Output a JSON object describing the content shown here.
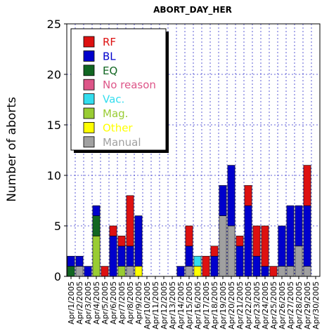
{
  "chart_data": {
    "type": "bar",
    "stacked": true,
    "title": "ABORT_DAY_HER",
    "xlabel": "",
    "ylabel": "Number of aborts",
    "ylim": [
      0,
      25
    ],
    "yticks": [
      0,
      5,
      10,
      15,
      20,
      25
    ],
    "grid": true,
    "legend_position": "top-left",
    "categories": [
      "Apr/1/2005",
      "Apr/2/2005",
      "Apr/3/2005",
      "Apr/4/2005",
      "Apr/5/2005",
      "Apr/6/2005",
      "Apr/7/2005",
      "Apr/8/2005",
      "Apr/9/2005",
      "Apr/10/2005",
      "Apr/11/2005",
      "Apr/12/2005",
      "Apr/13/2005",
      "Apr/14/2005",
      "Apr/15/2005",
      "Apr/16/2005",
      "Apr/17/2005",
      "Apr/18/2005",
      "Apr/19/2005",
      "Apr/20/2005",
      "Apr/21/2005",
      "Apr/22/2005",
      "Apr/23/2005",
      "Apr/24/2005",
      "Apr/25/2005",
      "Apr/26/2005",
      "Apr/27/2005",
      "Apr/28/2005",
      "Apr/29/2005",
      "Apr/30/2005"
    ],
    "series": [
      {
        "name": "Manual",
        "color": "#a0a0a0",
        "values": [
          0,
          1,
          0,
          0,
          0,
          0,
          0,
          1,
          0,
          0,
          0,
          0,
          0,
          0,
          1,
          0,
          0,
          0,
          6,
          5,
          0,
          0,
          0,
          0,
          0,
          1,
          1,
          3,
          1,
          0
        ]
      },
      {
        "name": "Other",
        "color": "#ffff00",
        "values": [
          0,
          0,
          0,
          0,
          0,
          0,
          0,
          0,
          1,
          0,
          0,
          0,
          0,
          0,
          0,
          1,
          0,
          0,
          0,
          0,
          0,
          0,
          0,
          0,
          0,
          0,
          0,
          0,
          0,
          0
        ]
      },
      {
        "name": "Mag.",
        "color": "#99cc33",
        "values": [
          0,
          0,
          0,
          4,
          0,
          0,
          1,
          0,
          0,
          0,
          0,
          0,
          0,
          0,
          0,
          0,
          0,
          0,
          0,
          0,
          0,
          0,
          0,
          0,
          0,
          0,
          0,
          0,
          0,
          0
        ]
      },
      {
        "name": "Vac.",
        "color": "#33ddee",
        "values": [
          0,
          0,
          0,
          0,
          0,
          0,
          0,
          0,
          0,
          0,
          0,
          0,
          0,
          0,
          0,
          1,
          0,
          0,
          0,
          0,
          0,
          0,
          0,
          0,
          0,
          0,
          0,
          0,
          0,
          0
        ]
      },
      {
        "name": "No reason",
        "color": "#dd5588",
        "values": [
          0,
          0,
          0,
          0,
          0,
          0,
          0,
          0,
          0,
          0,
          0,
          0,
          0,
          0,
          0,
          0,
          0,
          0,
          0,
          0,
          0,
          0,
          0,
          0,
          0,
          0,
          0,
          0,
          0,
          0
        ]
      },
      {
        "name": "EQ",
        "color": "#116622",
        "values": [
          1,
          0,
          0,
          2,
          0,
          0,
          0,
          0,
          0,
          0,
          0,
          0,
          0,
          0,
          0,
          0,
          0,
          0,
          0,
          0,
          0,
          0,
          0,
          0,
          0,
          0,
          0,
          0,
          0,
          0
        ]
      },
      {
        "name": "BL",
        "color": "#0000cc",
        "values": [
          1,
          1,
          1,
          1,
          0,
          4,
          2,
          2,
          5,
          0,
          0,
          0,
          0,
          1,
          2,
          0,
          0,
          2,
          3,
          6,
          3,
          7,
          2,
          1,
          0,
          4,
          6,
          4,
          6,
          0
        ]
      },
      {
        "name": "RF",
        "color": "#dd1111",
        "values": [
          0,
          0,
          0,
          0,
          1,
          1,
          1,
          5,
          0,
          0,
          0,
          0,
          0,
          0,
          2,
          0,
          2,
          1,
          0,
          0,
          1,
          2,
          3,
          4,
          1,
          0,
          0,
          0,
          4,
          0
        ]
      }
    ]
  },
  "legend_order": [
    "RF",
    "BL",
    "EQ",
    "No reason",
    "Vac.",
    "Mag.",
    "Other",
    "Manual"
  ]
}
